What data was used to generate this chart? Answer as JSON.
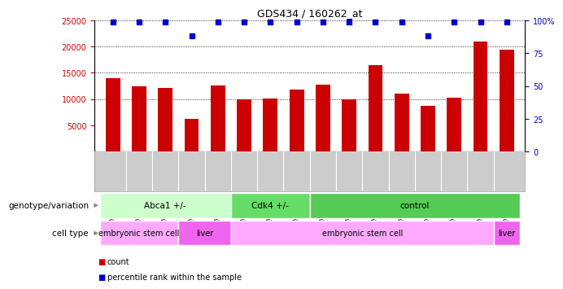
{
  "title": "GDS434 / 160262_at",
  "samples": [
    "GSM9269",
    "GSM9270",
    "GSM9271",
    "GSM9283",
    "GSM9284",
    "GSM9278",
    "GSM9279",
    "GSM9280",
    "GSM9272",
    "GSM9273",
    "GSM9274",
    "GSM9275",
    "GSM9276",
    "GSM9277",
    "GSM9281",
    "GSM9282"
  ],
  "counts": [
    14000,
    12500,
    12100,
    6300,
    12600,
    10000,
    10100,
    11800,
    12700,
    10000,
    16500,
    11100,
    8700,
    10300,
    21000,
    19400
  ],
  "percentile_ranks": [
    99,
    99,
    99,
    88,
    99,
    99,
    99,
    99,
    99,
    99,
    99,
    99,
    88,
    99,
    99,
    99
  ],
  "bar_color": "#cc0000",
  "dot_color": "#0000cc",
  "ylim_left": [
    0,
    25000
  ],
  "ylim_right": [
    0,
    100
  ],
  "yticks_left": [
    5000,
    10000,
    15000,
    20000,
    25000
  ],
  "yticks_right": [
    0,
    25,
    50,
    75,
    100
  ],
  "ytick_labels_right": [
    "0",
    "25",
    "50",
    "75",
    "100%"
  ],
  "grid_lines": [
    10000,
    15000,
    20000
  ],
  "genotype_groups": [
    {
      "label": "Abca1 +/-",
      "start": 0,
      "end": 5,
      "color": "#ccffcc"
    },
    {
      "label": "Cdk4 +/-",
      "start": 5,
      "end": 8,
      "color": "#66dd66"
    },
    {
      "label": "control",
      "start": 8,
      "end": 16,
      "color": "#55cc55"
    }
  ],
  "celltype_groups": [
    {
      "label": "embryonic stem cell",
      "start": 0,
      "end": 3,
      "color": "#ffaaff"
    },
    {
      "label": "liver",
      "start": 3,
      "end": 5,
      "color": "#ee66ee"
    },
    {
      "label": "embryonic stem cell",
      "start": 5,
      "end": 15,
      "color": "#ffaaff"
    },
    {
      "label": "liver",
      "start": 15,
      "end": 16,
      "color": "#ee66ee"
    }
  ],
  "legend_count_label": "count",
  "legend_pct_label": "percentile rank within the sample",
  "xlabel_genotype": "genotype/variation",
  "xlabel_celltype": "cell type",
  "bg_color": "#ffffff",
  "plot_bg": "#ffffff",
  "tickbox_bg": "#cccccc",
  "tickbox_border": "#999999"
}
